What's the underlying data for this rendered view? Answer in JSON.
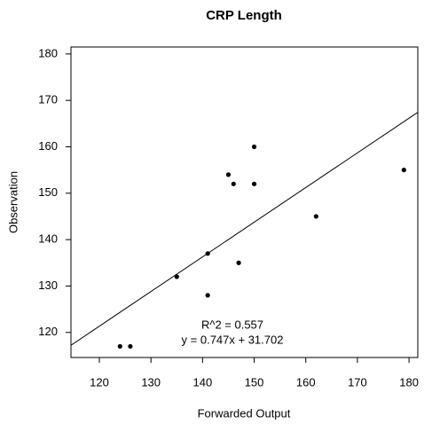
{
  "chart_data": {
    "type": "scatter",
    "title": "CRP Length",
    "x_label": "Forwarded Output",
    "y_label": "Observation",
    "x": [
      124,
      126,
      135,
      141,
      141,
      145,
      146,
      147,
      150,
      150,
      162,
      179
    ],
    "values": [
      117,
      117,
      132,
      137,
      128,
      154,
      152,
      135,
      160,
      152,
      145,
      155
    ],
    "color": "#000000",
    "xlim": [
      114.5,
      181.7
    ],
    "ylim": [
      114.6,
      181.5
    ],
    "xticks": [
      120,
      130,
      140,
      150,
      160,
      170,
      180
    ],
    "yticks": [
      120,
      130,
      140,
      150,
      160,
      170,
      180
    ],
    "fit": {
      "slope": 0.747,
      "intercept": 31.702
    },
    "annotations": [
      "R^2 = 0.557",
      "y = 0.747x + 31.702"
    ]
  }
}
